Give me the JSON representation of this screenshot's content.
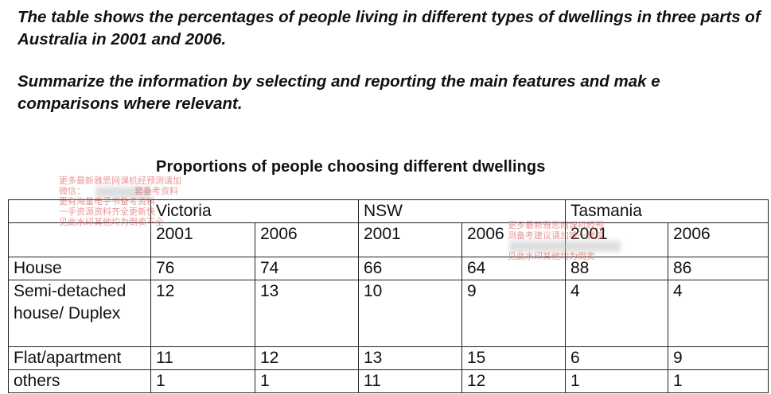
{
  "prompt": {
    "line1": "The table shows the percentages of people living in different types of dwellings in three parts of Australia in 2001 and 2006.",
    "line2": "Summarize the information by selecting and reporting the main features and mak e comparisons where relevant."
  },
  "chart_data": {
    "type": "table",
    "title": "Proportions of people choosing different dwellings",
    "regions": [
      "Victoria",
      "NSW",
      "Tasmania"
    ],
    "years": [
      "2001",
      "2006",
      "2001",
      "2006",
      "2001",
      "2006"
    ],
    "rows": [
      {
        "label": "House",
        "values": [
          "76",
          "74",
          "66",
          "64",
          "88",
          "86"
        ]
      },
      {
        "label": "Semi-detached house/ Duplex",
        "values": [
          "12",
          "13",
          "10",
          "9",
          "4",
          "4"
        ]
      },
      {
        "label": "Flat/apartment",
        "values": [
          "11",
          "12",
          "13",
          "15",
          "6",
          "9"
        ]
      },
      {
        "label": "others",
        "values": [
          "1",
          "1",
          "11",
          "12",
          "1",
          "1"
        ]
      }
    ]
  },
  "watermarks": {
    "left": [
      "更多最新雅思网课机经预测请加",
      "微信：",
      "套备考资料",
      "更有海量电子书备考资料",
      "一手资源资料齐全更新快",
      "见此水印其他均为倒卖不全"
    ],
    "right": [
      "更多最新雅思网课机经预",
      "测备考建议请加唯一微信",
      "见此水印其他均为倒卖"
    ]
  },
  "colors": {
    "text": "#111111",
    "border": "#222222",
    "watermark": "#d63f3f"
  }
}
